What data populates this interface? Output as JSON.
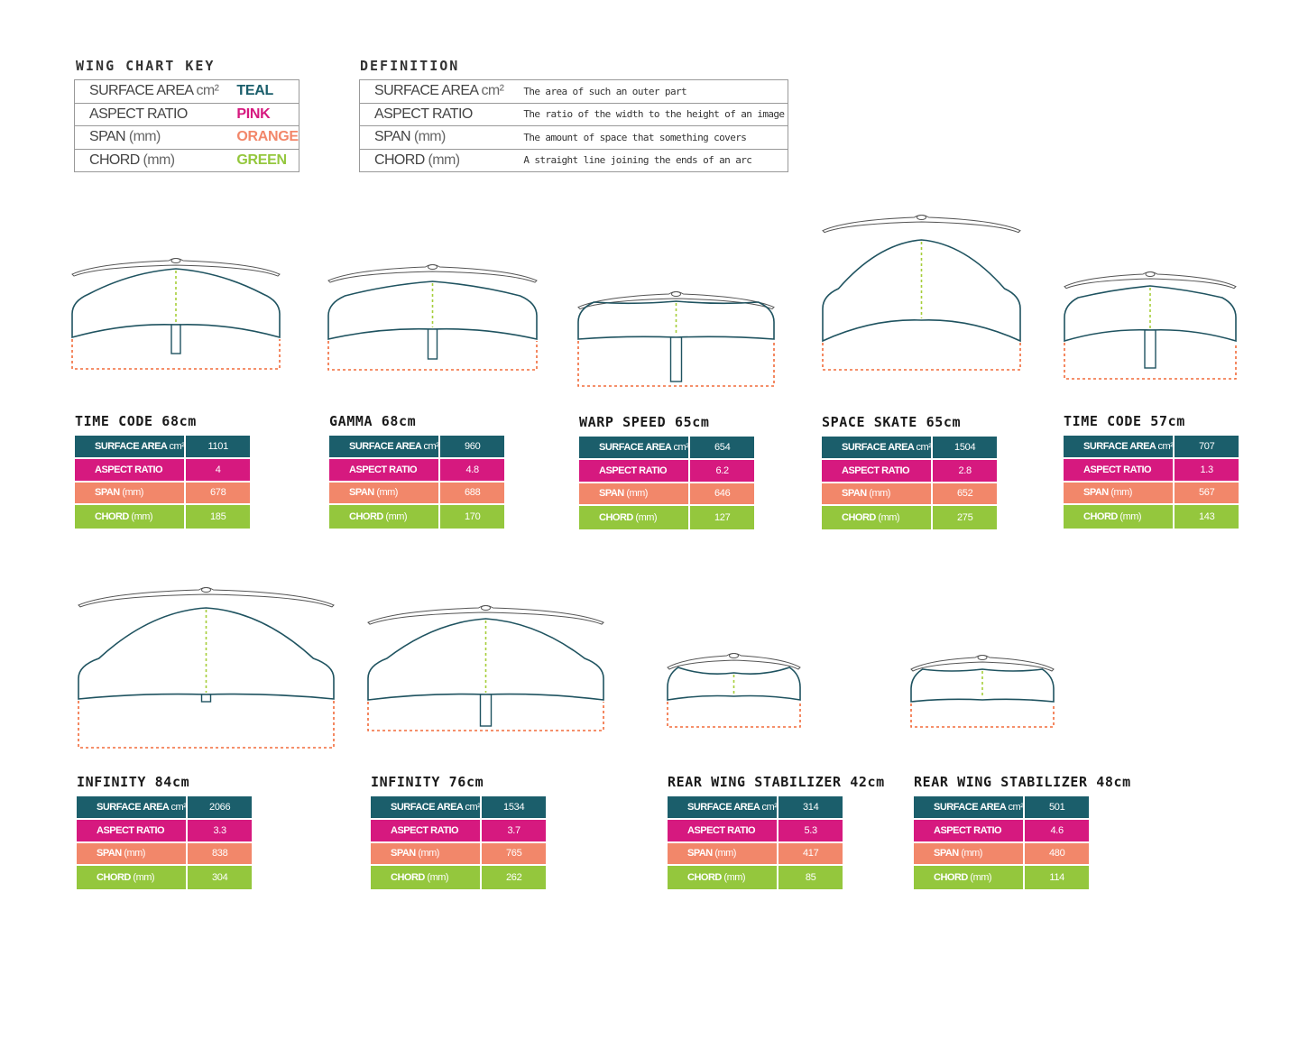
{
  "key": {
    "title": "WING CHART KEY",
    "rows": [
      {
        "label": "SURFACE AREA",
        "unit": "cm²",
        "color_name": "TEAL",
        "color": "#1b5e6b"
      },
      {
        "label": "ASPECT RATIO",
        "unit": "",
        "color_name": "PINK",
        "color": "#d6197f"
      },
      {
        "label": "SPAN",
        "unit": "(mm)",
        "color_name": "ORANGE",
        "color": "#f2876a"
      },
      {
        "label": "CHORD",
        "unit": "(mm)",
        "color_name": "GREEN",
        "color": "#94c73d"
      }
    ]
  },
  "definition": {
    "title": "DEFINITION",
    "rows": [
      {
        "label": "SURFACE AREA",
        "unit": "cm²",
        "text": "The area of such an outer part"
      },
      {
        "label": "ASPECT RATIO",
        "unit": "",
        "text": "The ratio of the width to the height of an image"
      },
      {
        "label": "SPAN",
        "unit": "(mm)",
        "text": "The amount of space that something covers"
      },
      {
        "label": "CHORD",
        "unit": "(mm)",
        "text": "A straight line joining the ends of an arc"
      }
    ]
  },
  "colors": {
    "teal": "#1b5e6b",
    "pink": "#d6197f",
    "orange": "#f2876a",
    "green": "#94c73d",
    "outline": "#1f5360",
    "span_dash": "#f26b3a",
    "chord_dash": "#a6ce39"
  },
  "stat_labels": {
    "surface": {
      "label": "SURFACE AREA",
      "unit": "cm²"
    },
    "aspect": {
      "label": "ASPECT RATIO",
      "unit": ""
    },
    "span": {
      "label": "SPAN",
      "unit": "(mm)"
    },
    "chord": {
      "label": "CHORD",
      "unit": "(mm)"
    }
  },
  "wings": [
    {
      "name": "TIME CODE 68cm",
      "surface": "1101",
      "aspect": "4",
      "span": "678",
      "chord": "185"
    },
    {
      "name": "GAMMA 68cm",
      "surface": "960",
      "aspect": "4.8",
      "span": "688",
      "chord": "170"
    },
    {
      "name": "WARP SPEED 65cm",
      "surface": "654",
      "aspect": "6.2",
      "span": "646",
      "chord": "127"
    },
    {
      "name": "SPACE SKATE 65cm",
      "surface": "1504",
      "aspect": "2.8",
      "span": "652",
      "chord": "275"
    },
    {
      "name": "TIME CODE 57cm",
      "surface": "707",
      "aspect": "1.3",
      "span": "567",
      "chord": "143"
    },
    {
      "name": "INFINITY 84cm",
      "surface": "2066",
      "aspect": "3.3",
      "span": "838",
      "chord": "304"
    },
    {
      "name": "INFINITY 76cm",
      "surface": "1534",
      "aspect": "3.7",
      "span": "765",
      "chord": "262"
    },
    {
      "name": "REAR WING STABILIZER 42cm",
      "surface": "314",
      "aspect": "5.3",
      "span": "417",
      "chord": "85"
    },
    {
      "name": "REAR WING STABILIZER 48cm",
      "surface": "501",
      "aspect": "4.6",
      "span": "480",
      "chord": "114"
    }
  ]
}
